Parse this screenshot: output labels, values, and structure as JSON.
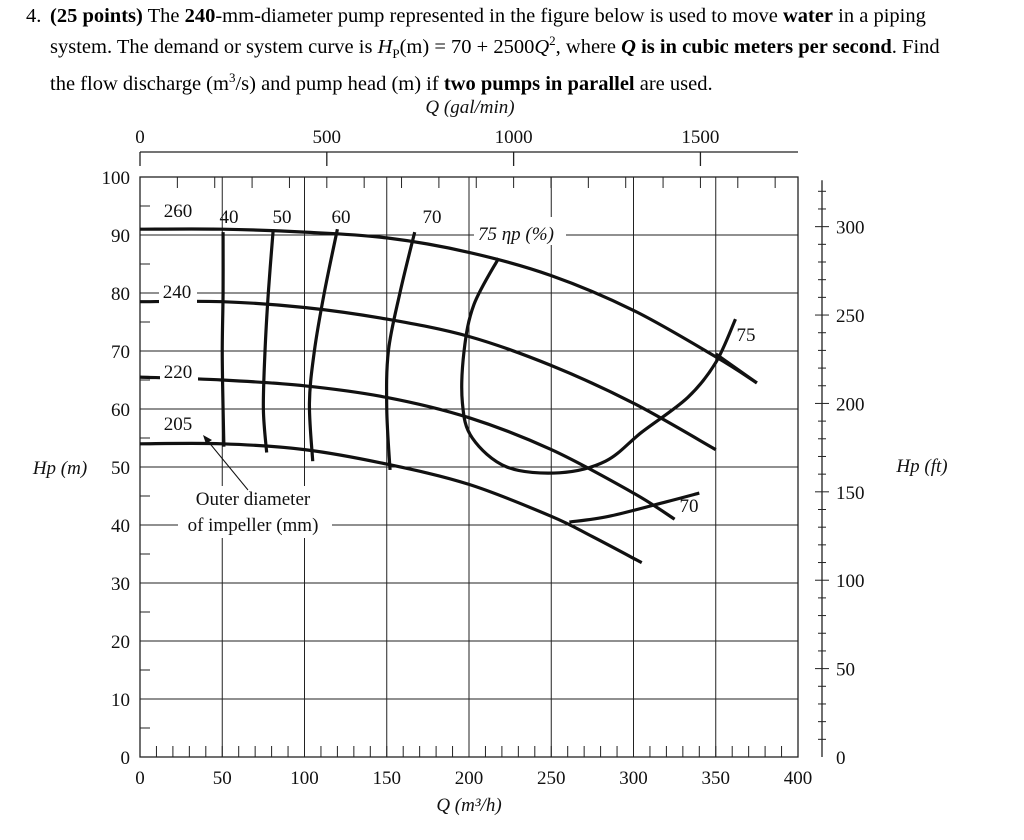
{
  "problem": {
    "number": "4.",
    "points": "(25 points)",
    "seg_a": " The ",
    "pump_size": "240",
    "seg_b": "-mm-diameter pump represented in the figure below is used to move ",
    "fluid": "water",
    "seg_c": " in a piping",
    "seg_d": "system. The demand or system curve is ",
    "eq_var": "H",
    "eq_sub": "P",
    "eq_rhs": "(m) = 70 + 2500",
    "eq_q": "Q",
    "eq_exp": "2",
    "seg_e": ", where ",
    "q_note_var": "Q",
    "q_note": " is in cubic meters per second",
    "seg_f": ". Find",
    "seg_g": "the flow discharge (m",
    "unit_exp": "3",
    "seg_h": "/s) and pump head (m) if ",
    "config": "two pumps in parallel",
    "seg_i": " are used."
  },
  "chart_data": {
    "type": "line",
    "title": "",
    "top_axis": {
      "label": "Q (gal/min)",
      "ticks": [
        "0",
        "500",
        "1000",
        "1500"
      ],
      "values": [
        0,
        500,
        1000,
        1500
      ]
    },
    "bottom_axis": {
      "label": "Q (m³/h)",
      "ticks": [
        "0",
        "50",
        "100",
        "150",
        "200",
        "250",
        "300",
        "350",
        "400"
      ],
      "values": [
        0,
        50,
        100,
        150,
        200,
        250,
        300,
        350,
        400
      ],
      "xlim": [
        0,
        400
      ]
    },
    "left_axis": {
      "label": "Hp (m)",
      "ticks": [
        "0",
        "10",
        "20",
        "30",
        "40",
        "50",
        "60",
        "70",
        "80",
        "90",
        "100"
      ],
      "values": [
        0,
        10,
        20,
        30,
        40,
        50,
        60,
        70,
        80,
        90,
        100
      ],
      "ylim": [
        0,
        100
      ]
    },
    "right_axis": {
      "label": "Hp (ft)",
      "ticks": [
        "0",
        "50",
        "100",
        "150",
        "200",
        "250",
        "300"
      ],
      "values": [
        0,
        50,
        100,
        150,
        200,
        250,
        300
      ]
    },
    "grid": true,
    "head_curves": [
      {
        "name": "260",
        "points": [
          [
            0,
            91
          ],
          [
            50,
            91
          ],
          [
            100,
            90.5
          ],
          [
            150,
            89.5
          ],
          [
            200,
            87
          ],
          [
            250,
            83
          ],
          [
            300,
            77
          ],
          [
            350,
            69
          ],
          [
            375,
            64.5
          ]
        ]
      },
      {
        "name": "240",
        "points": [
          [
            0,
            78.5
          ],
          [
            50,
            78.5
          ],
          [
            100,
            77.5
          ],
          [
            150,
            75.5
          ],
          [
            200,
            72.5
          ],
          [
            250,
            67.5
          ],
          [
            300,
            61
          ],
          [
            350,
            53
          ]
        ]
      },
      {
        "name": "220",
        "points": [
          [
            0,
            65.5
          ],
          [
            50,
            65
          ],
          [
            100,
            64
          ],
          [
            150,
            62
          ],
          [
            200,
            58.5
          ],
          [
            250,
            53
          ],
          [
            300,
            45.5
          ],
          [
            325,
            41
          ]
        ]
      },
      {
        "name": "205",
        "points": [
          [
            0,
            54
          ],
          [
            50,
            54
          ],
          [
            100,
            53
          ],
          [
            150,
            50.5
          ],
          [
            200,
            47
          ],
          [
            250,
            41.5
          ],
          [
            275,
            38
          ],
          [
            305,
            33.5
          ]
        ]
      }
    ],
    "efficiency_curves": [
      {
        "name": "40",
        "points": [
          [
            50.5,
            90.5
          ],
          [
            50.5,
            80
          ],
          [
            50,
            70
          ],
          [
            50.5,
            60
          ],
          [
            51,
            53.5
          ]
        ]
      },
      {
        "name": "50",
        "points": [
          [
            81,
            91
          ],
          [
            78,
            80
          ],
          [
            76,
            70
          ],
          [
            75,
            60
          ],
          [
            77,
            52.5
          ]
        ]
      },
      {
        "name": "60",
        "points": [
          [
            120,
            91
          ],
          [
            112,
            80
          ],
          [
            106,
            70
          ],
          [
            103,
            61
          ],
          [
            105,
            51
          ]
        ]
      },
      {
        "name": "70",
        "points": [
          [
            167,
            90.5
          ],
          [
            158,
            80
          ],
          [
            151,
            70
          ],
          [
            150,
            60
          ],
          [
            152,
            49.5
          ]
        ]
      },
      {
        "name": "75 ηp (%)",
        "points": [
          [
            218,
            86
          ],
          [
            203,
            78
          ],
          [
            197,
            70
          ],
          [
            196,
            61
          ],
          [
            202,
            55
          ],
          [
            223,
            50
          ],
          [
            255,
            49
          ],
          [
            283,
            51
          ],
          [
            305,
            56
          ],
          [
            333,
            62
          ],
          [
            350,
            68
          ],
          [
            362,
            75.5
          ]
        ]
      },
      {
        "name": "75",
        "points": [
          [
            350,
            69.5
          ],
          [
            375,
            64.5
          ]
        ]
      },
      {
        "name": "70",
        "points": [
          [
            261,
            40.5
          ],
          [
            285,
            41.5
          ],
          [
            320,
            44
          ],
          [
            340,
            45.5
          ]
        ]
      }
    ],
    "annotations": [
      "Outer diameter",
      "of impeller (mm)"
    ]
  }
}
